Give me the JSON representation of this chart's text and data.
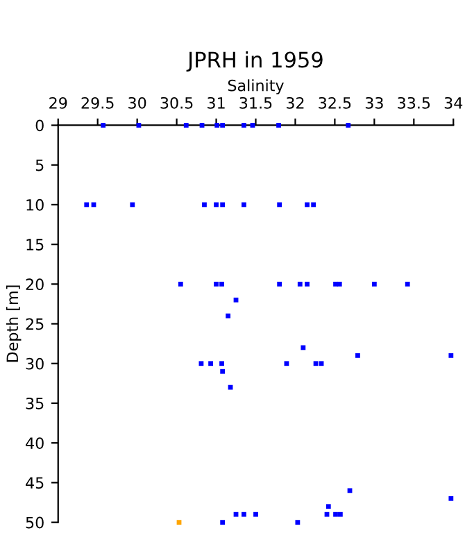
{
  "chart_data": {
    "type": "scatter",
    "title": "JPRH in 1959",
    "xlabel": "Salinity",
    "ylabel": "Depth [m]",
    "xlim": [
      29,
      34
    ],
    "xticks": [
      29,
      29.5,
      30,
      30.5,
      31,
      31.5,
      32,
      32.5,
      33,
      33.5,
      34
    ],
    "ylim": [
      50,
      0
    ],
    "yticks": [
      0,
      5,
      10,
      15,
      20,
      25,
      30,
      35,
      40,
      45,
      50
    ],
    "grid": false,
    "marker": "square",
    "series": [
      {
        "color": "#0000ff",
        "x": [
          29.57,
          30.02,
          30.62,
          30.82,
          31.01,
          31.08,
          31.35,
          31.46,
          31.79,
          32.67,
          29.36,
          29.45,
          29.94,
          30.85,
          31.0,
          31.08,
          31.35,
          31.8,
          32.15,
          32.23,
          30.55,
          31.0,
          31.07,
          31.8,
          32.06,
          32.15,
          32.51,
          32.56,
          33.0,
          33.42,
          31.25,
          31.15,
          32.1,
          32.79,
          33.97,
          30.81,
          30.93,
          31.07,
          31.89,
          32.26,
          32.33,
          31.08,
          31.18,
          32.69,
          33.97,
          32.42,
          31.25,
          31.35,
          31.5,
          32.4,
          32.51,
          32.57,
          31.08,
          32.03
        ],
        "values": [
          0,
          0,
          0,
          0,
          0,
          0,
          0,
          0,
          0,
          0,
          10,
          10,
          10,
          10,
          10,
          10,
          10,
          10,
          10,
          10,
          20,
          20,
          20,
          20,
          20,
          20,
          20,
          20,
          20,
          20,
          22,
          24,
          28,
          29,
          29,
          30,
          30,
          30,
          30,
          30,
          30,
          31,
          33,
          46,
          47,
          48,
          49,
          49,
          49,
          49,
          49,
          49,
          50,
          50
        ]
      },
      {
        "color": "#ffa500",
        "x": [
          30.53
        ],
        "values": [
          50
        ]
      }
    ]
  }
}
